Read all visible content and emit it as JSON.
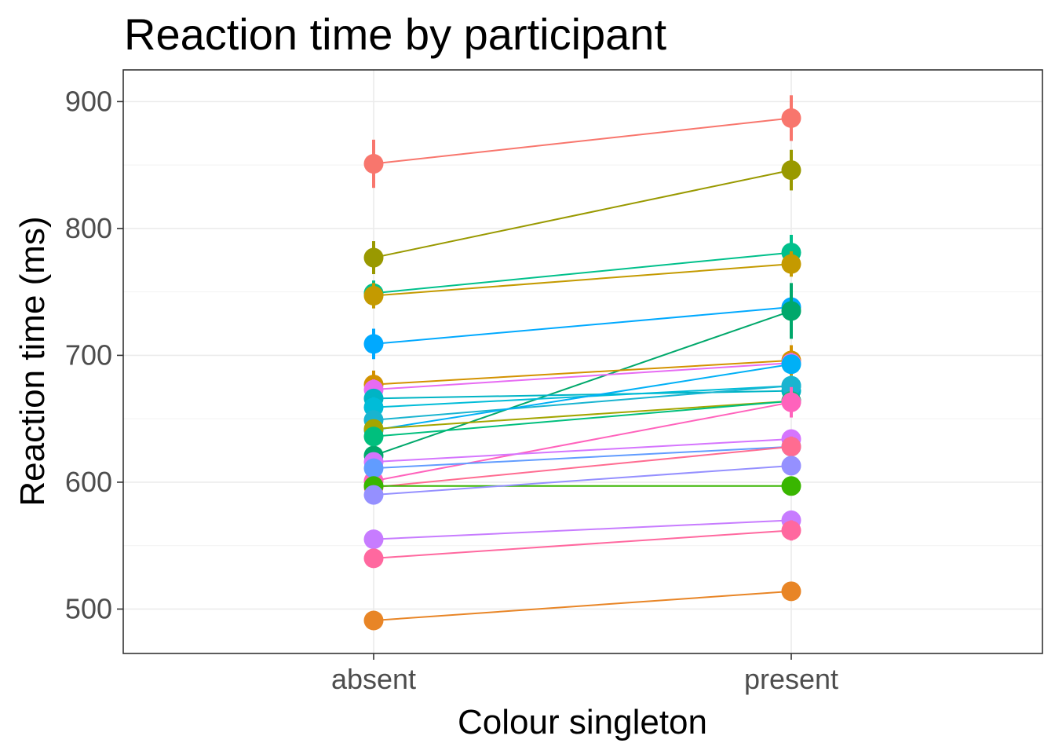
{
  "chart_data": {
    "type": "line",
    "title": "Reaction time by participant",
    "xlabel": "Colour singleton",
    "ylabel": "Reaction time (ms)",
    "categories": [
      "absent",
      "present"
    ],
    "ylim": [
      465,
      925
    ],
    "yticks": [
      500,
      600,
      700,
      800,
      900
    ],
    "grid": true,
    "legend": "none",
    "series": [
      {
        "color": "#F8766D",
        "values": [
          851,
          887
        ],
        "errors": [
          19,
          18
        ]
      },
      {
        "color": "#999900",
        "values": [
          777,
          846
        ],
        "errors": [
          13,
          16
        ]
      },
      {
        "color": "#00C08B",
        "values": [
          749,
          781
        ],
        "errors": [
          10,
          14
        ]
      },
      {
        "color": "#C49A00",
        "values": [
          747,
          772
        ],
        "errors": [
          10,
          10
        ]
      },
      {
        "color": "#00A9FF",
        "values": [
          709,
          738
        ],
        "errors": [
          12,
          16
        ]
      },
      {
        "color": "#00A86B",
        "values": [
          621,
          735
        ],
        "errors": [
          6,
          22
        ]
      },
      {
        "color": "#D39200",
        "values": [
          677,
          696
        ],
        "errors": [
          11,
          12
        ]
      },
      {
        "color": "#E76BF3",
        "values": [
          673,
          694
        ],
        "errors": [
          8,
          8
        ]
      },
      {
        "color": "#00B4C5",
        "values": [
          666,
          672
        ],
        "errors": [
          6,
          6
        ]
      },
      {
        "color": "#00BCD8",
        "values": [
          659,
          676
        ],
        "errors": [
          8,
          8
        ]
      },
      {
        "color": "#19B4D0",
        "values": [
          649,
          676
        ],
        "errors": [
          7,
          7
        ]
      },
      {
        "color": "#00B0F6",
        "values": [
          641,
          693
        ],
        "errors": [
          7,
          7
        ]
      },
      {
        "color": "#A3A500",
        "values": [
          642,
          664
        ],
        "errors": [
          6,
          6
        ]
      },
      {
        "color": "#00BF7D",
        "values": [
          636,
          664
        ],
        "errors": [
          7,
          7
        ]
      },
      {
        "color": "#FF62BC",
        "values": [
          601,
          663
        ],
        "errors": [
          8,
          12
        ]
      },
      {
        "color": "#D575FE",
        "values": [
          616,
          634
        ],
        "errors": [
          7,
          7
        ]
      },
      {
        "color": "#619CFF",
        "values": [
          611,
          628
        ],
        "errors": [
          6,
          6
        ]
      },
      {
        "color": "#FF6C91",
        "values": [
          596,
          628
        ],
        "errors": [
          7,
          8
        ]
      },
      {
        "color": "#39B600",
        "values": [
          597,
          597
        ],
        "errors": [
          6,
          6
        ]
      },
      {
        "color": "#9590FF",
        "values": [
          590,
          613
        ],
        "errors": [
          6,
          6
        ]
      },
      {
        "color": "#C77CFF",
        "values": [
          555,
          570
        ],
        "errors": [
          7,
          7
        ]
      },
      {
        "color": "#FF689F",
        "values": [
          540,
          562
        ],
        "errors": [
          7,
          8
        ]
      },
      {
        "color": "#E88526",
        "values": [
          491,
          514
        ],
        "errors": [
          5,
          5
        ]
      }
    ]
  }
}
